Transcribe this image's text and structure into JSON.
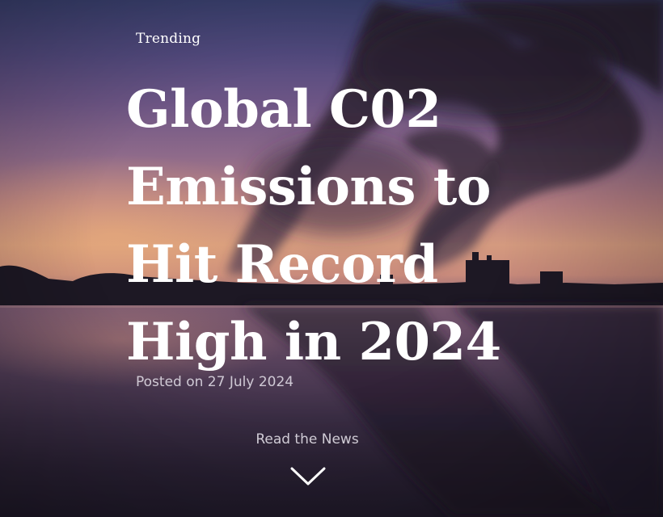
{
  "hero": {
    "tag_label": "Trending",
    "headline_lines": [
      "Global C02",
      "Emissions to",
      "Hit Record",
      "High in 2024"
    ],
    "posted_text": "Posted on 27 July 2024",
    "cta_label": "Read the News"
  },
  "icons": {
    "scroll_down": "chevron-down-icon"
  },
  "colors": {
    "headline_text": "#ffffff",
    "meta_text": "#ebe8f0",
    "sky_top": "#3b4170",
    "horizon_glow": "#d49a7f",
    "smoke": "#2c2232"
  }
}
